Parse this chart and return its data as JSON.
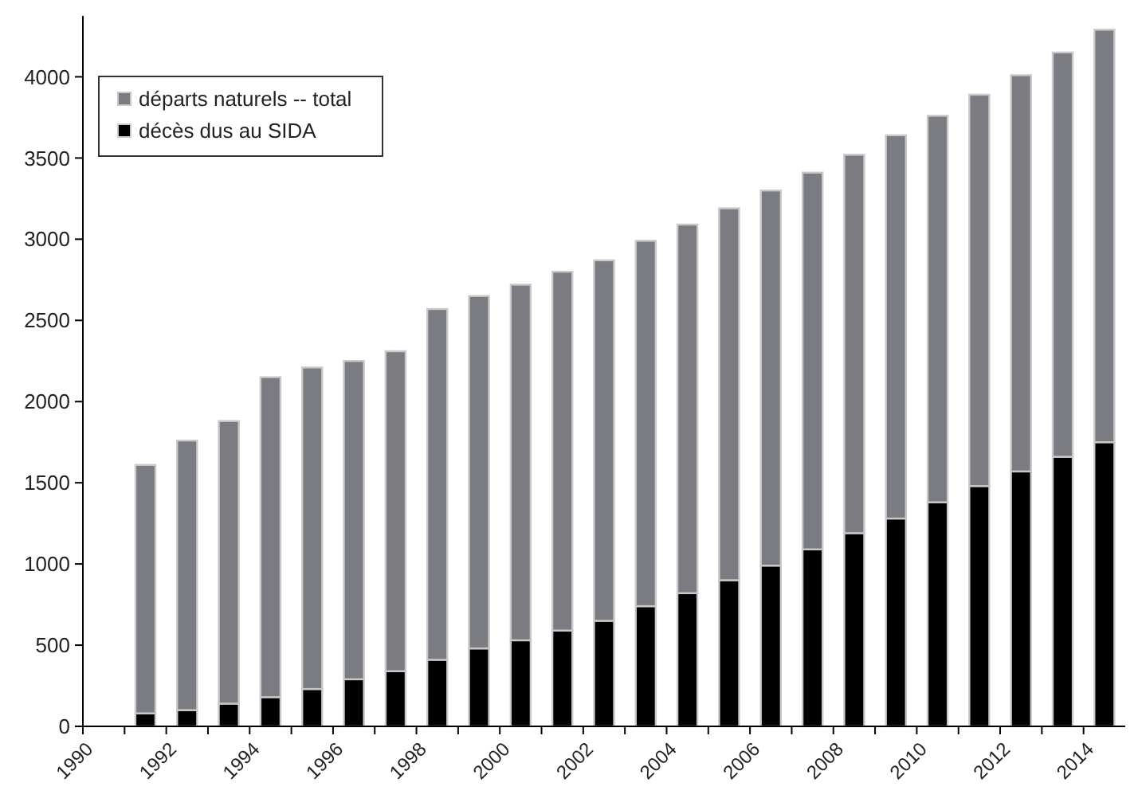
{
  "chart_data": {
    "type": "bar",
    "stacked": true,
    "x": [
      1991.5,
      1992.5,
      1993.5,
      1994.5,
      1995.5,
      1996.5,
      1997.5,
      1998.5,
      1999.5,
      2000.5,
      2001.5,
      2002.5,
      2003.5,
      2004.5,
      2005.5,
      2006.5,
      2007.5,
      2008.5,
      2009.5,
      2010.5,
      2011.5,
      2012.5,
      2013.5,
      2014.5
    ],
    "series": [
      {
        "name": "décès dus au SIDA",
        "color": "#000000",
        "values": [
          80,
          100,
          140,
          180,
          230,
          290,
          340,
          410,
          480,
          530,
          590,
          650,
          740,
          820,
          900,
          990,
          1090,
          1190,
          1280,
          1380,
          1480,
          1570,
          1660,
          1750
        ]
      },
      {
        "name": "départs naturels -- total",
        "color": "#7b7c81",
        "values": [
          1530,
          1660,
          1740,
          1970,
          1980,
          1960,
          1970,
          2160,
          2170,
          2190,
          2210,
          2220,
          2250,
          2270,
          2290,
          2310,
          2320,
          2330,
          2360,
          2380,
          2410,
          2440,
          2490,
          2540
        ]
      }
    ],
    "xlim": [
      1990,
      2015
    ],
    "xticks": [
      1990,
      {
        "value": 1991,
        "label": null
      },
      1992,
      {
        "value": 1993,
        "label": null
      },
      1994,
      {
        "value": 1995,
        "label": null
      },
      1996,
      {
        "value": 1997,
        "label": null
      },
      1998,
      {
        "value": 1999,
        "label": null
      },
      2000,
      {
        "value": 2001,
        "label": null
      },
      2002,
      {
        "value": 2003,
        "label": null
      },
      2004,
      {
        "value": 2005,
        "label": null
      },
      2006,
      {
        "value": 2007,
        "label": null
      },
      2008,
      {
        "value": 2009,
        "label": null
      },
      2010,
      {
        "value": 2011,
        "label": null
      },
      2012,
      {
        "value": 2013,
        "label": null
      },
      2014
    ],
    "ylim": [
      0,
      4375
    ],
    "yticks": [
      0,
      500,
      1000,
      1500,
      2000,
      2500,
      3000,
      3500,
      4000
    ],
    "legend": "top left",
    "grid": false
  }
}
